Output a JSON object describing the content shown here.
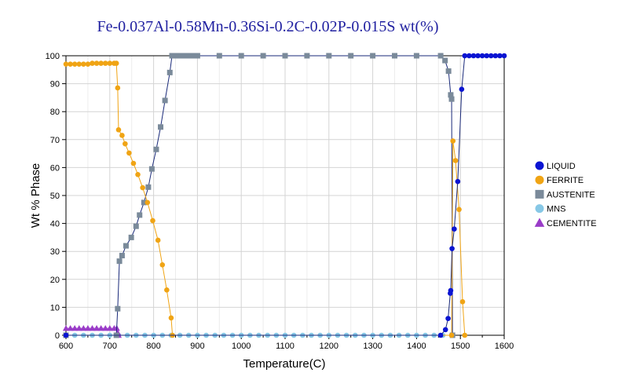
{
  "chart_data": {
    "type": "line",
    "title": "Fe-0.037Al-0.58Mn-0.36Si-0.2C-0.02P-0.015S wt(%)",
    "xlabel": "Temperature(C)",
    "ylabel": "Wt % Phase",
    "xlim": [
      600,
      1600
    ],
    "ylim": [
      0,
      100
    ],
    "xticks": [
      600,
      700,
      800,
      900,
      1000,
      1100,
      1200,
      1300,
      1400,
      1500,
      1600
    ],
    "yticks": [
      0,
      10,
      20,
      30,
      40,
      50,
      60,
      70,
      80,
      90,
      100
    ],
    "grid": true,
    "legend_position": "right",
    "series": [
      {
        "name": "LIQUID",
        "color": "#0a14d2",
        "marker": "circle",
        "points": [
          [
            600,
            0
          ],
          [
            1455,
            0
          ],
          [
            1466,
            2
          ],
          [
            1472,
            6
          ],
          [
            1477,
            15
          ],
          [
            1478,
            16
          ],
          [
            1481,
            31
          ],
          [
            1486,
            38
          ],
          [
            1494,
            55
          ],
          [
            1503,
            88
          ],
          [
            1510,
            100
          ],
          [
            1520,
            100
          ],
          [
            1530,
            100
          ],
          [
            1540,
            100
          ],
          [
            1550,
            100
          ],
          [
            1560,
            100
          ],
          [
            1570,
            100
          ],
          [
            1580,
            100
          ],
          [
            1590,
            100
          ],
          [
            1600,
            100
          ]
        ]
      },
      {
        "name": "FERRITE",
        "color": "#f0a414",
        "marker": "circle",
        "points": [
          [
            600,
            97
          ],
          [
            610,
            97
          ],
          [
            620,
            97
          ],
          [
            630,
            97
          ],
          [
            640,
            97
          ],
          [
            650,
            97
          ],
          [
            660,
            97.3
          ],
          [
            670,
            97.3
          ],
          [
            680,
            97.3
          ],
          [
            690,
            97.3
          ],
          [
            700,
            97.3
          ],
          [
            710,
            97.3
          ],
          [
            715,
            97.3
          ],
          [
            718,
            88.5
          ],
          [
            720,
            73.5
          ],
          [
            728,
            71.5
          ],
          [
            735,
            68.5
          ],
          [
            744,
            65.2
          ],
          [
            754,
            61.5
          ],
          [
            764,
            57.5
          ],
          [
            775,
            52.8
          ],
          [
            786,
            47.5
          ],
          [
            798,
            41
          ],
          [
            810,
            34
          ],
          [
            820,
            25.2
          ],
          [
            830,
            16.2
          ],
          [
            840,
            6.2
          ],
          [
            843,
            0
          ],
          [
            1480,
            0
          ],
          [
            1483,
            69.5
          ],
          [
            1489,
            62.5
          ],
          [
            1497,
            45
          ],
          [
            1505,
            12
          ],
          [
            1510,
            0
          ]
        ]
      },
      {
        "name": "AUSTENITE",
        "color": "#7a8a9a",
        "marker": "square",
        "points": [
          [
            600,
            0
          ],
          [
            715,
            0
          ],
          [
            718,
            9.5
          ],
          [
            722,
            26.5
          ],
          [
            728,
            28.5
          ],
          [
            737,
            32
          ],
          [
            749,
            35
          ],
          [
            760,
            39
          ],
          [
            768,
            43
          ],
          [
            778,
            47.5
          ],
          [
            788,
            53
          ],
          [
            796,
            59.5
          ],
          [
            806,
            66.5
          ],
          [
            816,
            74.5
          ],
          [
            826,
            84
          ],
          [
            837,
            94
          ],
          [
            842,
            100
          ],
          [
            850,
            100
          ],
          [
            860,
            100
          ],
          [
            870,
            100
          ],
          [
            880,
            100
          ],
          [
            890,
            100
          ],
          [
            900,
            100
          ],
          [
            950,
            100
          ],
          [
            1000,
            100
          ],
          [
            1050,
            100
          ],
          [
            1100,
            100
          ],
          [
            1150,
            100
          ],
          [
            1200,
            100
          ],
          [
            1250,
            100
          ],
          [
            1300,
            100
          ],
          [
            1350,
            100
          ],
          [
            1400,
            100
          ],
          [
            1455,
            100
          ],
          [
            1465,
            98.3
          ],
          [
            1473,
            94.5
          ],
          [
            1478,
            86
          ],
          [
            1480,
            84.5
          ],
          [
            1482,
            0
          ]
        ]
      },
      {
        "name": "MNS",
        "color": "#87c8e6",
        "marker": "circle",
        "points": [
          [
            600,
            0
          ],
          [
            620,
            0
          ],
          [
            640,
            0
          ],
          [
            660,
            0
          ],
          [
            680,
            0
          ],
          [
            700,
            0
          ],
          [
            720,
            0
          ],
          [
            740,
            0
          ],
          [
            760,
            0
          ],
          [
            780,
            0
          ],
          [
            800,
            0
          ],
          [
            820,
            0
          ],
          [
            840,
            0
          ],
          [
            860,
            0
          ],
          [
            880,
            0
          ],
          [
            900,
            0
          ],
          [
            920,
            0
          ],
          [
            940,
            0
          ],
          [
            960,
            0
          ],
          [
            980,
            0
          ],
          [
            1000,
            0
          ],
          [
            1020,
            0
          ],
          [
            1040,
            0
          ],
          [
            1060,
            0
          ],
          [
            1080,
            0
          ],
          [
            1100,
            0
          ],
          [
            1120,
            0
          ],
          [
            1140,
            0
          ],
          [
            1160,
            0
          ],
          [
            1180,
            0
          ],
          [
            1200,
            0
          ],
          [
            1220,
            0
          ],
          [
            1240,
            0
          ],
          [
            1260,
            0
          ],
          [
            1280,
            0
          ],
          [
            1300,
            0
          ],
          [
            1320,
            0
          ],
          [
            1340,
            0
          ],
          [
            1360,
            0
          ],
          [
            1380,
            0
          ],
          [
            1400,
            0
          ],
          [
            1420,
            0
          ],
          [
            1440,
            0
          ],
          [
            1460,
            0
          ],
          [
            1480,
            0
          ]
        ]
      },
      {
        "name": "CEMENTITE",
        "color": "#9a3cc8",
        "marker": "triangle",
        "points": [
          [
            600,
            2.5
          ],
          [
            610,
            2.5
          ],
          [
            620,
            2.5
          ],
          [
            630,
            2.5
          ],
          [
            640,
            2.5
          ],
          [
            650,
            2.5
          ],
          [
            660,
            2.5
          ],
          [
            670,
            2.5
          ],
          [
            680,
            2.5
          ],
          [
            690,
            2.5
          ],
          [
            700,
            2.5
          ],
          [
            710,
            2.5
          ],
          [
            716,
            2.5
          ],
          [
            718,
            1
          ],
          [
            720,
            0
          ]
        ]
      }
    ]
  }
}
